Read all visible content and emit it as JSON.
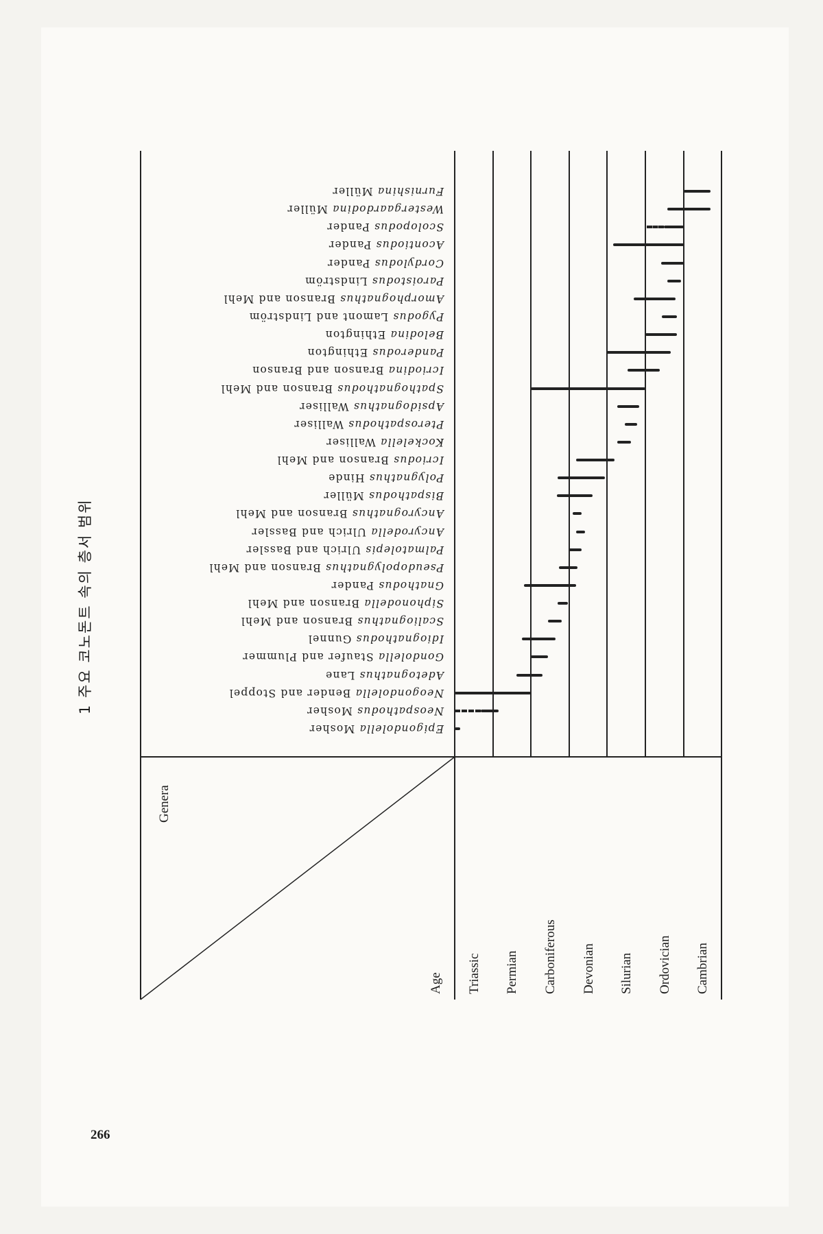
{
  "title": "1 주요 코노돈트 속의 층서 범위",
  "page_number": "266",
  "table": {
    "header_genera": "Genera",
    "header_age": "Age",
    "ages": [
      "Triassic",
      "Permian",
      "Carboniferous",
      "Devonian",
      "Silurian",
      "Ordovician",
      "Cambrian"
    ],
    "range_units_note": "ranges in period-column units: 0 = top of Triassic, 7 = base of Cambrian",
    "genera": [
      {
        "genus": "Epigondolella",
        "author": "Mosher",
        "range": [
          0,
          0.15
        ]
      },
      {
        "genus": "Neospathodus",
        "author": "Mosher",
        "range": [
          0.68,
          1.15
        ],
        "dashed": [
          0,
          0.68
        ]
      },
      {
        "genus": "Neogondolella",
        "author": "Bender and Stoppel",
        "range": [
          0,
          2.0
        ]
      },
      {
        "genus": "Adetognathus",
        "author": "Lane",
        "range": [
          1.62,
          2.3
        ]
      },
      {
        "genus": "Gondolella",
        "author": "Staufer and Plummer",
        "range": [
          2.0,
          2.44
        ]
      },
      {
        "genus": "Idiognathodus",
        "author": "Gunnel",
        "range": [
          1.76,
          2.65
        ]
      },
      {
        "genus": "Scaliognathus",
        "author": "Branson and Mehl",
        "range": [
          2.44,
          2.81
        ]
      },
      {
        "genus": "Siphonodella",
        "author": "Branson and Mehl",
        "range": [
          2.7,
          2.97
        ]
      },
      {
        "genus": "Gnathodus",
        "author": "Pander",
        "range": [
          1.82,
          3.18
        ]
      },
      {
        "genus": "Pseudopolygnathus",
        "author": "Branson and Mehl",
        "range": [
          2.73,
          3.22
        ]
      },
      {
        "genus": "Palmatolepis",
        "author": "Ulrich and Bassler",
        "range": [
          2.99,
          3.33
        ]
      },
      {
        "genus": "Ancyrodella",
        "author": "Ulrich and Bassler",
        "range": [
          3.18,
          3.42
        ]
      },
      {
        "genus": "Ancyrognathus",
        "author": "Branson and Mehl",
        "range": [
          3.09,
          3.33
        ]
      },
      {
        "genus": "Bispathodus",
        "author": "Müller",
        "range": [
          2.68,
          3.61
        ]
      },
      {
        "genus": "Polygnathus",
        "author": "Hinde",
        "range": [
          2.7,
          3.94
        ]
      },
      {
        "genus": "Icriodus",
        "author": "Branson and Mehl",
        "range": [
          3.19,
          4.19
        ]
      },
      {
        "genus": "Kockelella",
        "author": "Walliser",
        "range": [
          4.27,
          4.63
        ]
      },
      {
        "genus": "Pterospathodus",
        "author": "Walliser",
        "range": [
          4.46,
          4.78
        ]
      },
      {
        "genus": "Apsidognathus",
        "author": "Walliser",
        "range": [
          4.27,
          4.84
        ]
      },
      {
        "genus": "Spathognathodus",
        "author": "Branson and Mehl",
        "range": [
          2.0,
          5.0
        ]
      },
      {
        "genus": "Icriodina",
        "author": "Branson and Branson",
        "range": [
          4.54,
          5.38
        ]
      },
      {
        "genus": "Panderodus",
        "author": "Ethington",
        "range": [
          3.98,
          5.67
        ]
      },
      {
        "genus": "Belodina",
        "author": "Ethington",
        "range": [
          5.0,
          5.82
        ]
      },
      {
        "genus": "Pygodus",
        "author": "Lamont and Lindström",
        "range": [
          5.44,
          5.82
        ]
      },
      {
        "genus": "Amorphognathus",
        "author": "Branson and Mehl",
        "range": [
          4.7,
          5.8
        ]
      },
      {
        "genus": "Paroistodus",
        "author": "Lindström",
        "range": [
          5.57,
          5.93
        ]
      },
      {
        "genus": "Cordylodus",
        "author": "Pander",
        "range": [
          5.42,
          6.0
        ]
      },
      {
        "genus": "Acontiodus",
        "author": "Pander",
        "range": [
          4.15,
          6.0
        ]
      },
      {
        "genus": "Scolopodus",
        "author": "Pander",
        "range": [
          5.48,
          6.0
        ],
        "dashed": [
          5.03,
          5.48
        ]
      },
      {
        "genus": "Westergaardodina",
        "author": "Müller",
        "range": [
          5.58,
          6.7
        ]
      },
      {
        "genus": "Furnishina",
        "author": "Müller",
        "range": [
          6.0,
          6.7
        ]
      }
    ]
  }
}
